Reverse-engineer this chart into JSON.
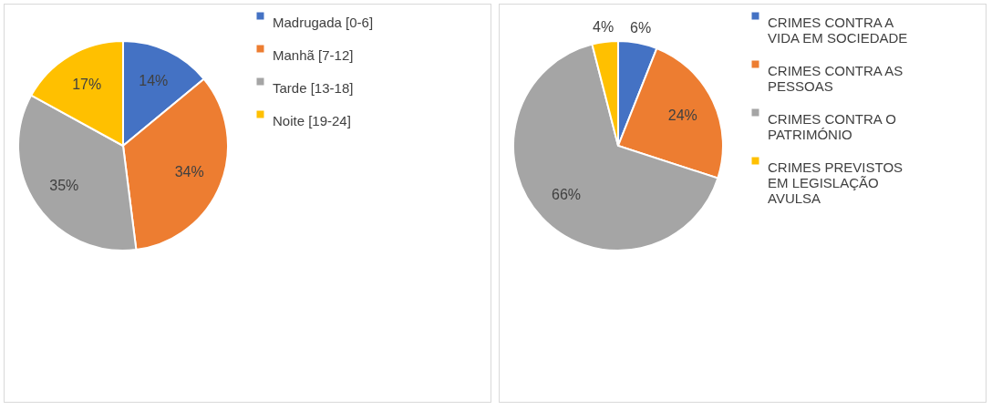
{
  "chart_data": [
    {
      "type": "pie",
      "categories": [
        "Madrugada [0-6]",
        "Manhã [7-12]",
        "Tarde [13-18]",
        "Noite [19-24]"
      ],
      "values": [
        14,
        34,
        35,
        17
      ],
      "value_labels": [
        "14%",
        "34%",
        "35%",
        "17%"
      ],
      "colors": [
        "#4472c4",
        "#ed7d31",
        "#a5a5a5",
        "#ffc000"
      ],
      "legend": "right"
    },
    {
      "type": "pie",
      "categories": [
        "CRIMES CONTRA A VIDA EM SOCIEDADE",
        "CRIMES CONTRA AS PESSOAS",
        "CRIMES CONTRA O PATRIMÓNIO",
        "CRIMES PREVISTOS EM LEGISLAÇÃO AVULSA"
      ],
      "values": [
        6,
        24,
        66,
        4
      ],
      "value_labels": [
        "6%",
        "24%",
        "66%",
        "4%"
      ],
      "colors": [
        "#4472c4",
        "#ed7d31",
        "#a5a5a5",
        "#ffc000"
      ],
      "legend": "right"
    }
  ]
}
